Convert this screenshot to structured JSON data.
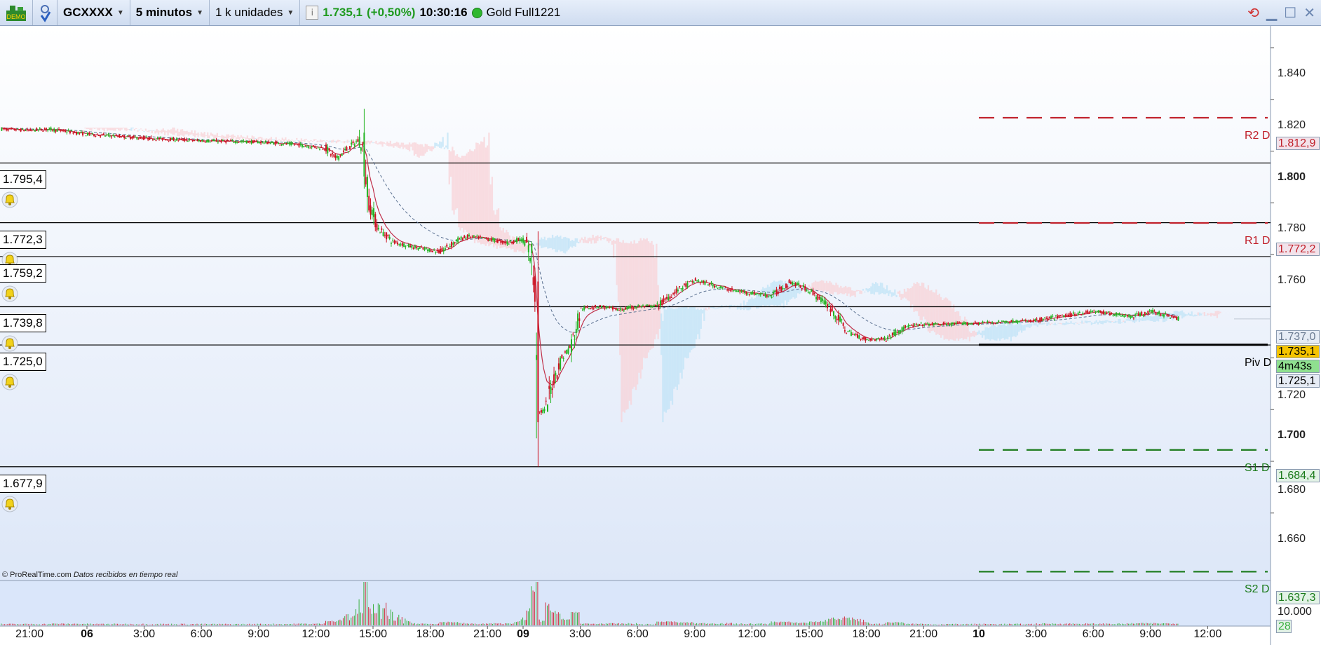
{
  "toolbar": {
    "demo_badge": "DEMO",
    "instrument": "GCXXXX",
    "timeframe": "5 minutos",
    "units": "1 k unidades",
    "info_icon": "i",
    "last_price": "1.735,1",
    "change": "(+0,50%)",
    "time": "10:30:16",
    "contract": "Gold Full1221",
    "status_color": "#2fb82f",
    "icons": [
      "demo-icon",
      "link-icon",
      "info-icon",
      "refresh-icon",
      "minimize-icon",
      "maximize-icon",
      "close-icon"
    ]
  },
  "footer": {
    "copyright": "© ProRealTime.com",
    "note": "Datos recibidos en tiempo real"
  },
  "alert_lines": [
    {
      "label": "1.795,4",
      "price": 1.7954
    },
    {
      "label": "1.772,3",
      "price": 1.7723
    },
    {
      "label": "1.759,2",
      "price": 1.7592
    },
    {
      "label": "1.739,8",
      "price": 1.7398
    },
    {
      "label": "1.725,0",
      "price": 1.725
    },
    {
      "label": "1.677,9",
      "price": 1.6779
    }
  ],
  "pivots": [
    {
      "name": "R2 D",
      "value": "1.812,9",
      "price": 1.8129,
      "color": "#c0202a",
      "style": "dashed"
    },
    {
      "name": "R1 D",
      "value": "1.772,2",
      "price": 1.7722,
      "color": "#c0202a",
      "style": "dashed"
    },
    {
      "name": "Piv D",
      "value": "1.725,1",
      "price": 1.7251,
      "color": "#000000",
      "style": "solid"
    },
    {
      "name": "S1 D",
      "value": "1.684,4",
      "price": 1.6844,
      "color": "#1a7a1a",
      "style": "dashed"
    },
    {
      "name": "S2 D",
      "value": "1.637,3",
      "price": 1.6373,
      "color": "#1a7a1a",
      "style": "dashed"
    }
  ],
  "price_axis": {
    "ticks": [
      {
        "label": "1.840",
        "price": 1.84,
        "bold": false
      },
      {
        "label": "1.820",
        "price": 1.82,
        "bold": false
      },
      {
        "label": "1.800",
        "price": 1.8,
        "bold": true
      },
      {
        "label": "1.780",
        "price": 1.78,
        "bold": false
      },
      {
        "label": "1.760",
        "price": 1.76,
        "bold": false
      },
      {
        "label": "1.720",
        "price": 1.72,
        "bold": false
      },
      {
        "label": "1.700",
        "price": 1.7,
        "bold": true
      },
      {
        "label": "1.680",
        "price": 1.68,
        "bold": false
      },
      {
        "label": "1.660",
        "price": 1.66,
        "bold": false
      }
    ],
    "hidden_box": {
      "label": "1.737,0",
      "price": 1.737
    },
    "current_price": {
      "label": "1.735,1",
      "price": 1.7351,
      "color": "#f5c400"
    },
    "countdown": {
      "label": "4m43s",
      "color": "#8fe08f"
    }
  },
  "volume_axis": {
    "tick": "10.000",
    "current": "28"
  },
  "time_axis": [
    {
      "label": "21:00",
      "t": "05 21:00",
      "bold": false
    },
    {
      "label": "06",
      "t": "06 00:00",
      "bold": true
    },
    {
      "label": "3:00",
      "t": "06 03:00",
      "bold": false
    },
    {
      "label": "6:00",
      "t": "06 06:00",
      "bold": false
    },
    {
      "label": "9:00",
      "t": "06 09:00",
      "bold": false
    },
    {
      "label": "12:00",
      "t": "06 12:00",
      "bold": false
    },
    {
      "label": "15:00",
      "t": "06 15:00",
      "bold": false
    },
    {
      "label": "18:00",
      "t": "06 18:00",
      "bold": false
    },
    {
      "label": "21:00",
      "t": "06 21:00",
      "bold": false
    },
    {
      "label": "09",
      "t": "09 00:00",
      "bold": true
    },
    {
      "label": "3:00",
      "t": "09 03:00",
      "bold": false
    },
    {
      "label": "6:00",
      "t": "09 06:00",
      "bold": false
    },
    {
      "label": "9:00",
      "t": "09 09:00",
      "bold": false
    },
    {
      "label": "12:00",
      "t": "09 12:00",
      "bold": false
    },
    {
      "label": "15:00",
      "t": "09 15:00",
      "bold": false
    },
    {
      "label": "18:00",
      "t": "09 18:00",
      "bold": false
    },
    {
      "label": "21:00",
      "t": "09 21:00",
      "bold": false
    },
    {
      "label": "10",
      "t": "10 00:00",
      "bold": true
    },
    {
      "label": "3:00",
      "t": "10 03:00",
      "bold": false
    },
    {
      "label": "6:00",
      "t": "10 06:00",
      "bold": false
    },
    {
      "label": "9:00",
      "t": "10 09:00",
      "bold": false
    },
    {
      "label": "12:00",
      "t": "10 12:00",
      "bold": false
    }
  ],
  "chart_data": {
    "type": "candlestick",
    "interval": "5 minutos",
    "colors": {
      "up": "#22b422",
      "down": "#cc1020",
      "ma": "#c0304a",
      "ma_slow": "#5a7090"
    },
    "ylim": [
      1.63,
      1.85
    ],
    "price_path": [
      [
        "05 19:30",
        1.8085
      ],
      [
        "05 21:00",
        1.808
      ],
      [
        "05 22:00",
        1.8085
      ],
      [
        "06 00:00",
        1.8065
      ],
      [
        "06 03:00",
        1.805
      ],
      [
        "06 06:00",
        1.804
      ],
      [
        "06 09:00",
        1.8035
      ],
      [
        "06 11:00",
        1.8025
      ],
      [
        "06 12:30",
        1.801
      ],
      [
        "06 13:00",
        1.797
      ],
      [
        "06 13:30",
        1.8
      ],
      [
        "06 14:15",
        1.8045
      ],
      [
        "06 14:30",
        1.8
      ],
      [
        "06 14:45",
        1.78
      ],
      [
        "06 15:15",
        1.77
      ],
      [
        "06 16:00",
        1.765
      ],
      [
        "06 17:00",
        1.763
      ],
      [
        "06 18:30",
        1.761
      ],
      [
        "06 19:30",
        1.766
      ],
      [
        "06 20:00",
        1.767
      ],
      [
        "06 21:00",
        1.766
      ],
      [
        "06 22:00",
        1.7645
      ],
      [
        "06 22:45",
        1.766
      ],
      [
        "09 00:10",
        1.764
      ],
      [
        "09 00:25",
        1.758
      ],
      [
        "09 00:40",
        1.74
      ],
      [
        "09 00:50",
        1.699
      ],
      [
        "09 01:10",
        1.7
      ],
      [
        "09 01:30",
        1.71
      ],
      [
        "09 02:00",
        1.72
      ],
      [
        "09 02:30",
        1.725
      ],
      [
        "09 03:00",
        1.739
      ],
      [
        "09 04:00",
        1.74
      ],
      [
        "09 05:00",
        1.7385
      ],
      [
        "09 06:00",
        1.74
      ],
      [
        "09 07:00",
        1.74
      ],
      [
        "09 08:00",
        1.746
      ],
      [
        "09 09:00",
        1.75
      ],
      [
        "09 10:00",
        1.748
      ],
      [
        "09 11:00",
        1.746
      ],
      [
        "09 12:00",
        1.745
      ],
      [
        "09 13:00",
        1.744
      ],
      [
        "09 14:00",
        1.7495
      ],
      [
        "09 15:00",
        1.746
      ],
      [
        "09 16:00",
        1.74
      ],
      [
        "09 17:00",
        1.73
      ],
      [
        "09 18:00",
        1.727
      ],
      [
        "09 19:00",
        1.7275
      ],
      [
        "09 20:00",
        1.732
      ],
      [
        "09 21:00",
        1.733
      ],
      [
        "09 22:00",
        1.733
      ],
      [
        "10 00:00",
        1.7335
      ],
      [
        "10 03:00",
        1.7345
      ],
      [
        "10 05:00",
        1.737
      ],
      [
        "10 06:00",
        1.738
      ],
      [
        "10 08:00",
        1.736
      ],
      [
        "10 09:00",
        1.738
      ],
      [
        "10 10:30",
        1.7351
      ]
    ],
    "session_low": 1.6779,
    "volume_spikes": [
      [
        "06 14:30",
        9000
      ],
      [
        "06 15:40",
        6500
      ],
      [
        "09 00:50",
        4500
      ],
      [
        "09 17:00",
        3000
      ]
    ]
  }
}
